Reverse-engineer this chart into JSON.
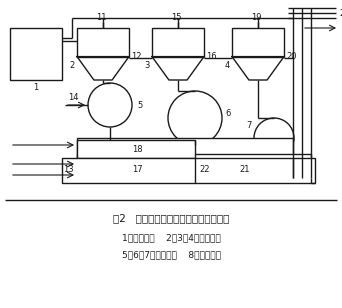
{
  "title": "图2   拜耳法中氢氧化铝分级实验流程图",
  "caption_line1": "1－分解槽；    2、3、4－分级机；",
  "caption_line2": "5、6、7－过滤机；    8－沉降槽。",
  "bg_color": "#ffffff",
  "line_color": "#1a1a1a",
  "fig_width": 3.42,
  "fig_height": 3.08,
  "dpi": 100,
  "title_fontsize": 7.5,
  "caption_fontsize": 6.5,
  "label_fontsize": 6.0
}
